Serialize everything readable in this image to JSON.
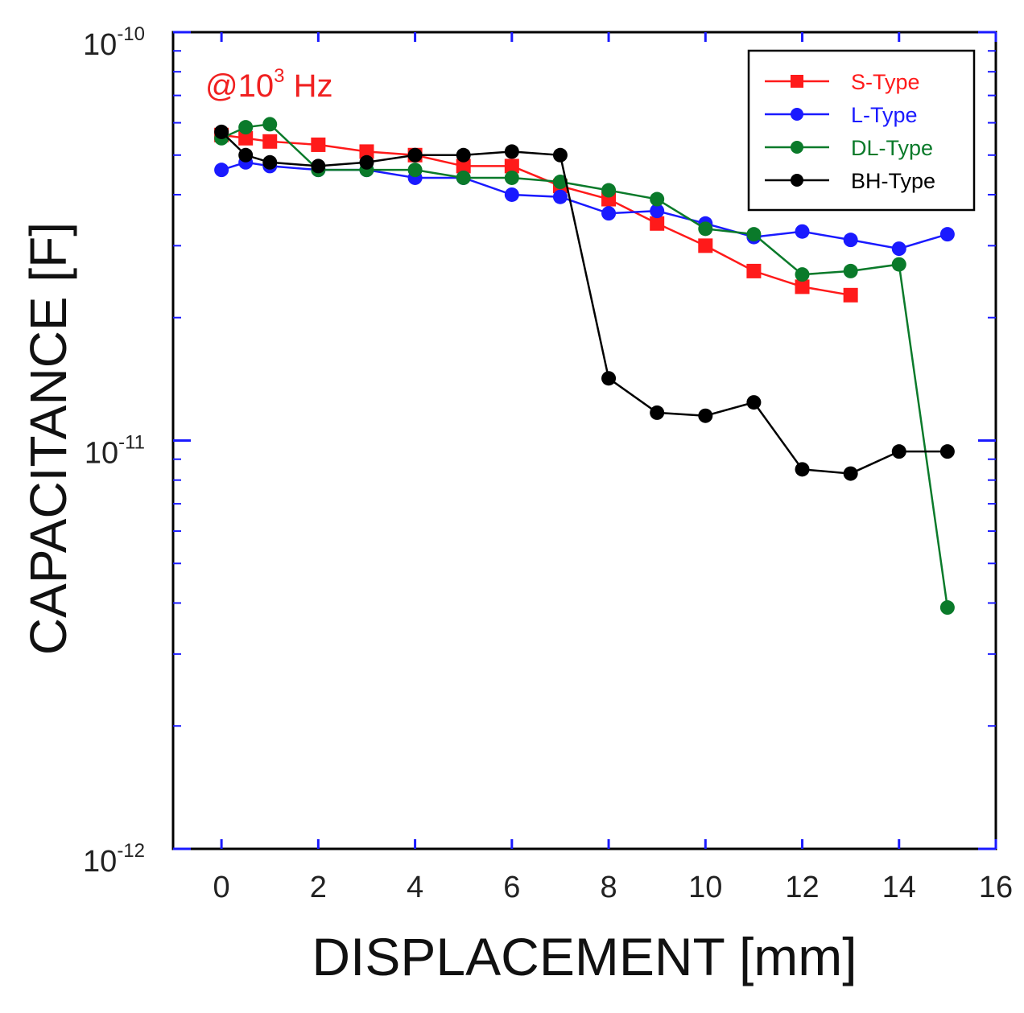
{
  "chart_data": {
    "type": "line",
    "title": "",
    "annotation": {
      "prefix": "@10",
      "sup": "3",
      "suffix": " Hz",
      "color": "#f02020"
    },
    "xlabel": "DISPLACEMENT [mm]",
    "ylabel": "CAPACITANCE [F]",
    "xlim": [
      -1,
      16
    ],
    "ylim": [
      1e-12,
      1e-10
    ],
    "yscale": "log",
    "xticks": [
      0,
      2,
      4,
      6,
      8,
      10,
      12,
      14,
      16
    ],
    "yticks": [
      {
        "value": 1e-10,
        "base": "10",
        "exp": "-10"
      },
      {
        "value": 1e-11,
        "base": "10",
        "exp": "-11"
      },
      {
        "value": 1e-12,
        "base": "10",
        "exp": "-12"
      }
    ],
    "legend_position": "top-right",
    "series": [
      {
        "name": "S-Type",
        "color": "#ff1a1a",
        "marker": "square",
        "x": [
          0,
          0.5,
          1,
          2,
          3,
          4,
          5,
          6,
          7,
          8,
          9,
          10,
          11,
          12,
          13
        ],
        "y": [
          5.6e-11,
          5.5e-11,
          5.4e-11,
          5.3e-11,
          5.1e-11,
          5e-11,
          4.7e-11,
          4.7e-11,
          4.2e-11,
          3.9e-11,
          3.4e-11,
          3e-11,
          2.6e-11,
          2.38e-11,
          2.27e-11
        ]
      },
      {
        "name": "L-Type",
        "color": "#1a1aff",
        "marker": "circle",
        "x": [
          0,
          0.5,
          1,
          2,
          3,
          4,
          5,
          6,
          7,
          8,
          9,
          10,
          11,
          12,
          13,
          14,
          15
        ],
        "y": [
          4.6e-11,
          4.8e-11,
          4.7e-11,
          4.6e-11,
          4.6e-11,
          4.4e-11,
          4.4e-11,
          4e-11,
          3.95e-11,
          3.6e-11,
          3.65e-11,
          3.4e-11,
          3.15e-11,
          3.25e-11,
          3.1e-11,
          2.95e-11,
          3.2e-11
        ]
      },
      {
        "name": "DL-Type",
        "color": "#0a7a2a",
        "marker": "circle",
        "x": [
          0,
          0.5,
          1,
          2,
          3,
          4,
          5,
          6,
          7,
          8,
          9,
          10,
          11,
          12,
          13,
          14,
          15
        ],
        "y": [
          5.5e-11,
          5.85e-11,
          5.95e-11,
          4.6e-11,
          4.6e-11,
          4.6e-11,
          4.4e-11,
          4.4e-11,
          4.3e-11,
          4.1e-11,
          3.9e-11,
          3.3e-11,
          3.2e-11,
          2.55e-11,
          2.6e-11,
          2.7e-11,
          3.9e-12
        ]
      },
      {
        "name": "BH-Type",
        "color": "#000000",
        "marker": "circle",
        "x": [
          0,
          0.5,
          1,
          2,
          3,
          4,
          5,
          6,
          7,
          8,
          9,
          10,
          11,
          12,
          13,
          14,
          15
        ],
        "y": [
          5.7e-11,
          5e-11,
          4.8e-11,
          4.7e-11,
          4.8e-11,
          5e-11,
          5e-11,
          5.1e-11,
          5e-11,
          1.42e-11,
          1.17e-11,
          1.15e-11,
          1.24e-11,
          8.5e-12,
          8.3e-12,
          9.4e-12,
          9.4e-12
        ]
      }
    ]
  }
}
